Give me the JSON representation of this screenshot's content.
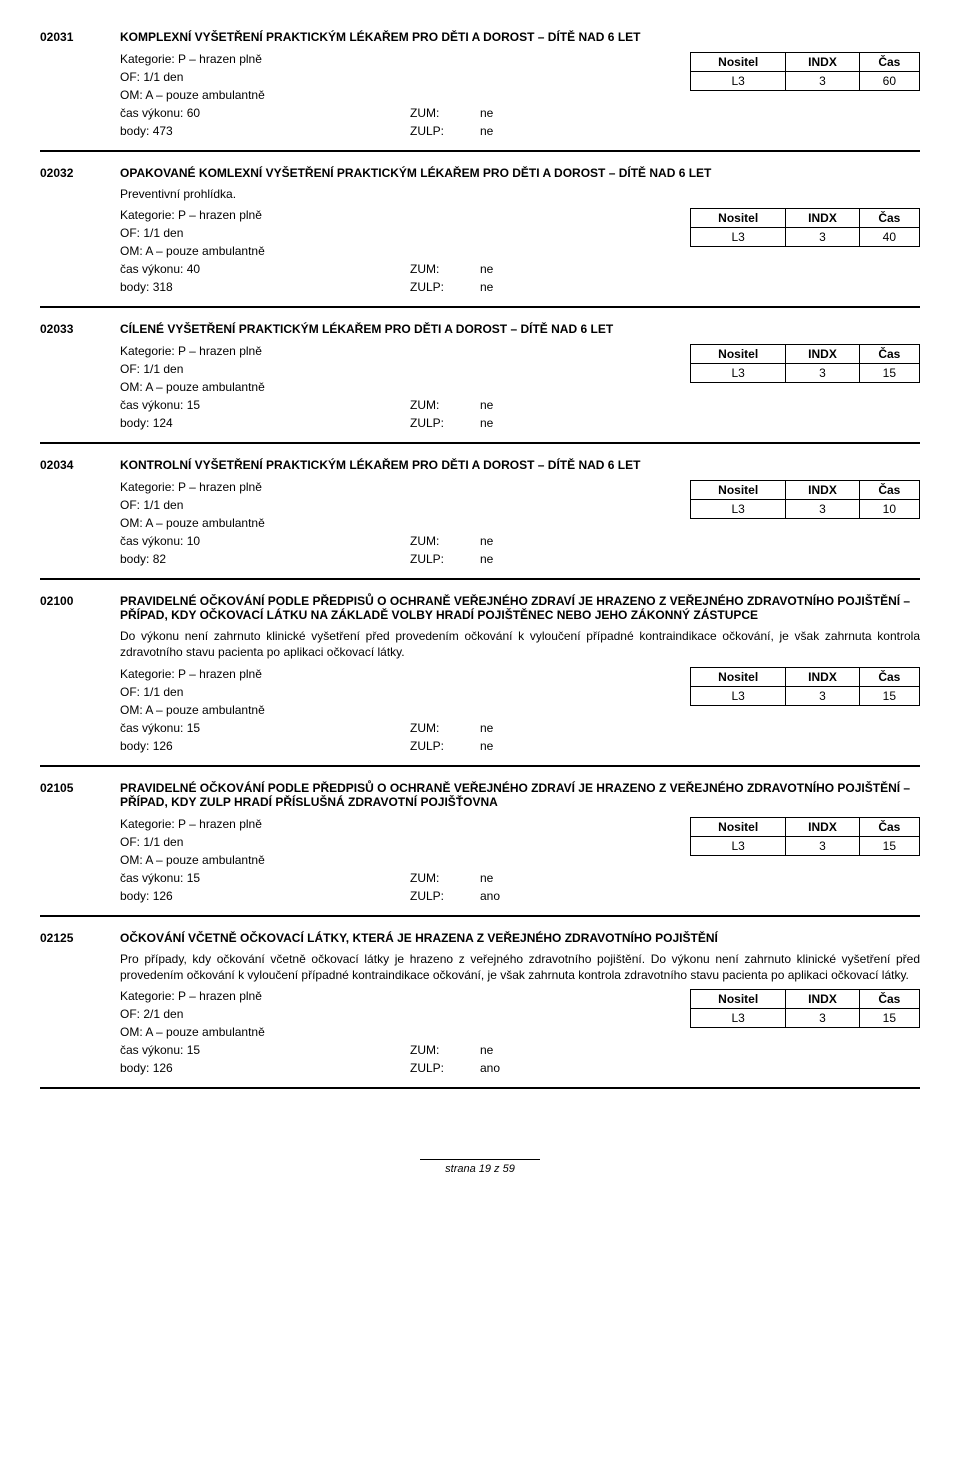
{
  "labels": {
    "kategorie": "Kategorie:",
    "of": "OF:",
    "om": "OM:",
    "casVykonu": "čas výkonu:",
    "body": "body:",
    "zum": "ZUM:",
    "zulp": "ZULP:",
    "nositel": "Nositel",
    "indx": "INDX",
    "cas": "Čas"
  },
  "footer": "strana 19 z 59",
  "entries": [
    {
      "code": "02031",
      "title": "KOMPLEXNÍ VYŠETŘENÍ PRAKTICKÝM LÉKAŘEM PRO DĚTI A DOROST – DÍTĚ NAD 6 LET",
      "desc": "",
      "kategorie": "P – hrazen plně",
      "of": "1/1 den",
      "om": "A – pouze ambulantně",
      "casVykonu": "60",
      "bodyVal": "473",
      "zum": "ne",
      "zulp": "ne",
      "nositel": "L3",
      "indx": "3",
      "cas": "60",
      "thickAfter": true
    },
    {
      "code": "02032",
      "title": "OPAKOVANÉ KOMLEXNÍ VYŠETŘENÍ PRAKTICKÝM LÉKAŘEM PRO DĚTI A DOROST – DÍTĚ NAD 6 LET",
      "desc": "Preventivní prohlídka.",
      "kategorie": "P – hrazen plně",
      "of": "1/1 den",
      "om": "A – pouze ambulantně",
      "casVykonu": "40",
      "bodyVal": "318",
      "zum": "ne",
      "zulp": "ne",
      "nositel": "L3",
      "indx": "3",
      "cas": "40",
      "thickAfter": true
    },
    {
      "code": "02033",
      "title": "CÍLENÉ VYŠETŘENÍ PRAKTICKÝM LÉKAŘEM PRO DĚTI A DOROST – DÍTĚ NAD 6 LET",
      "desc": "",
      "kategorie": "P – hrazen plně",
      "of": "1/1 den",
      "om": "A – pouze ambulantně",
      "casVykonu": "15",
      "bodyVal": "124",
      "zum": "ne",
      "zulp": "ne",
      "nositel": "L3",
      "indx": "3",
      "cas": "15",
      "thickAfter": true
    },
    {
      "code": "02034",
      "title": "KONTROLNÍ VYŠETŘENÍ PRAKTICKÝM LÉKAŘEM PRO DĚTI A DOROST – DÍTĚ NAD 6 LET",
      "desc": "",
      "kategorie": "P – hrazen plně",
      "of": "1/1 den",
      "om": "A – pouze ambulantně",
      "casVykonu": "10",
      "bodyVal": "82",
      "zum": "ne",
      "zulp": "ne",
      "nositel": "L3",
      "indx": "3",
      "cas": "10",
      "thickAfter": true
    },
    {
      "code": "02100",
      "title": "PRAVIDELNÉ OČKOVÁNÍ PODLE PŘEDPISŮ O OCHRANĚ VEŘEJNÉHO ZDRAVÍ JE HRAZENO Z VEŘEJNÉHO ZDRAVOTNÍHO POJIŠTĚNÍ – PŘÍPAD, KDY OČKOVACÍ LÁTKU NA ZÁKLADĚ VOLBY HRADÍ POJIŠTĚNEC NEBO JEHO ZÁKONNÝ ZÁSTUPCE",
      "desc": "Do výkonu není zahrnuto klinické vyšetření před provedením očkování k vyloučení případné kontraindikace očkování, je však zahrnuta kontrola zdravotního stavu pacienta po aplikaci očkovací látky.",
      "kategorie": "P – hrazen plně",
      "of": "1/1 den",
      "om": "A – pouze ambulantně",
      "casVykonu": "15",
      "bodyVal": "126",
      "zum": "ne",
      "zulp": "ne",
      "nositel": "L3",
      "indx": "3",
      "cas": "15",
      "thickAfter": true
    },
    {
      "code": "02105",
      "title": "PRAVIDELNÉ OČKOVÁNÍ PODLE PŘEDPISŮ O OCHRANĚ VEŘEJNÉHO ZDRAVÍ JE HRAZENO Z VEŘEJNÉHO ZDRAVOTNÍHO POJIŠTĚNÍ – PŘÍPAD, KDY ZULP HRADÍ PŘÍSLUŠNÁ ZDRAVOTNÍ POJIŠŤOVNA",
      "desc": "",
      "kategorie": "P – hrazen plně",
      "of": "1/1 den",
      "om": "A – pouze ambulantně",
      "casVykonu": "15",
      "bodyVal": "126",
      "zum": "ne",
      "zulp": "ano",
      "nositel": "L3",
      "indx": "3",
      "cas": "15",
      "thickAfter": true
    },
    {
      "code": "02125",
      "title": "OČKOVÁNÍ VČETNĚ OČKOVACÍ LÁTKY, KTERÁ JE HRAZENA Z VEŘEJNÉHO ZDRAVOTNÍHO POJIŠTĚNÍ",
      "desc": "Pro případy, kdy očkování včetně očkovací látky je hrazeno z veřejného zdravotního pojištění. Do výkonu není zahrnuto klinické vyšetření před provedením očkování k vyloučení případné kontraindikace očkování, je však zahrnuta kontrola zdravotního stavu pacienta po aplikaci očkovací látky.",
      "kategorie": "P – hrazen plně",
      "of": "2/1 den",
      "om": "A – pouze ambulantně",
      "casVykonu": "15",
      "bodyVal": "126",
      "zum": "ne",
      "zulp": "ano",
      "nositel": "L3",
      "indx": "3",
      "cas": "15",
      "thickAfter": true
    }
  ]
}
